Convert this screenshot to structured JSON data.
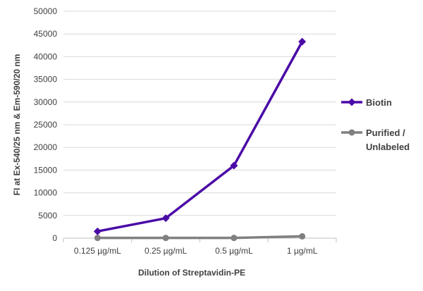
{
  "chart_data": {
    "type": "line",
    "categories": [
      "0.125 µg/mL",
      "0.25 µg/mL",
      "0.5 µg/mL",
      "1 µg/mL"
    ],
    "series": [
      {
        "name": "Biotin",
        "values": [
          1500,
          4400,
          16000,
          43300
        ],
        "color": "#4B0BA6",
        "marker": "diamond"
      },
      {
        "name": "Purified / Unlabeled",
        "legend_lines": [
          "Purified /",
          "Unlabeled"
        ],
        "values": [
          50,
          50,
          50,
          400
        ],
        "color": "#808080",
        "marker": "circle"
      }
    ],
    "xlabel": "Dilution of Streptavidin-PE",
    "ylabel": "FI at Ex-540/25 nm & Em-590/20 nm",
    "ylim": [
      0,
      50000
    ],
    "yticks": [
      "0",
      "5000",
      "10000",
      "15000",
      "20000",
      "25000",
      "30000",
      "35000",
      "40000",
      "45000",
      "50000"
    ],
    "grid": true,
    "legend_position": "right"
  }
}
